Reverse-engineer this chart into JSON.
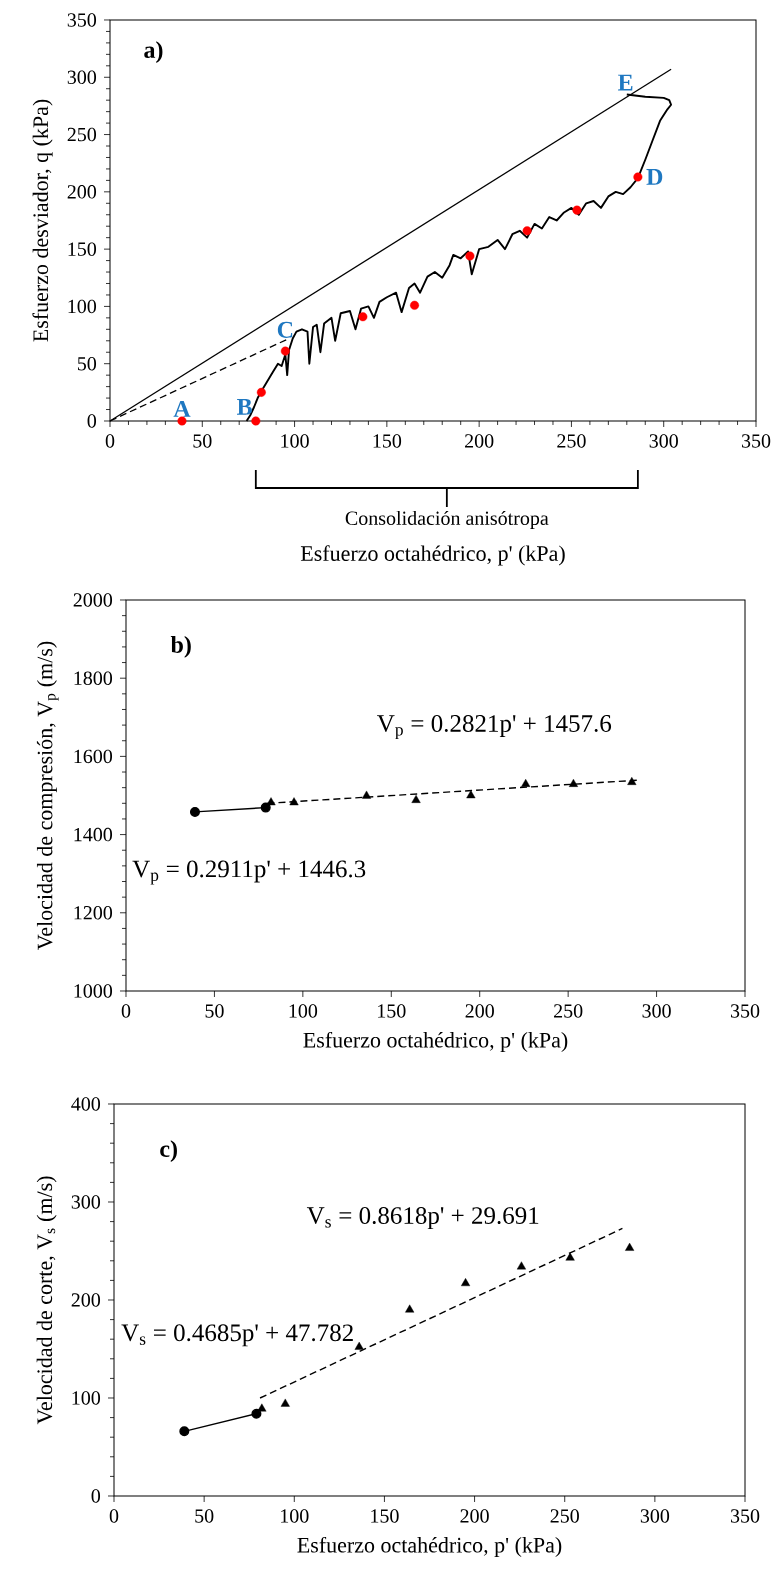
{
  "chart_data": [
    {
      "type": "line",
      "xlabel": "Esfuerzo octahédrico, p' (kPa)",
      "ylabel": "Esfuerzo desviador, q (kPa)",
      "xlim": [
        0,
        350
      ],
      "ylim": [
        0,
        350
      ],
      "xticks": [
        0,
        50,
        100,
        150,
        200,
        250,
        300,
        350
      ],
      "yticks": [
        0,
        50,
        100,
        150,
        200,
        250,
        300,
        350
      ],
      "series": [
        {
          "color": "#000000",
          "line_style": "solid",
          "x": [
            74,
            76,
            78,
            80,
            82,
            85,
            88,
            91,
            93,
            95,
            96,
            97,
            99,
            101,
            104,
            107,
            108,
            110,
            112,
            114,
            116,
            120,
            122,
            125,
            130,
            133,
            136,
            140,
            143,
            146,
            150,
            155,
            158,
            162,
            165,
            168,
            172,
            176,
            180,
            184,
            186,
            190,
            194,
            196,
            200,
            205,
            210,
            214,
            218,
            222,
            226,
            230,
            234,
            238,
            242,
            246,
            250,
            254,
            258,
            262,
            266,
            270,
            274,
            278,
            282,
            286,
            290,
            294,
            298,
            302,
            304,
            303,
            300,
            290,
            280
          ],
          "values": [
            0,
            5,
            12,
            20,
            26,
            34,
            42,
            50,
            48,
            58,
            40,
            62,
            72,
            78,
            80,
            78,
            50,
            82,
            84,
            60,
            85,
            90,
            70,
            94,
            96,
            80,
            98,
            100,
            90,
            104,
            108,
            112,
            95,
            116,
            120,
            112,
            126,
            130,
            125,
            136,
            145,
            142,
            148,
            128,
            150,
            152,
            158,
            150,
            163,
            166,
            160,
            172,
            168,
            178,
            175,
            182,
            186,
            180,
            190,
            192,
            186,
            196,
            200,
            198,
            204,
            212,
            228,
            245,
            262,
            272,
            276,
            280,
            282,
            283,
            285
          ]
        },
        {
          "color": "#000000",
          "line_style": "solid",
          "x": [
            0,
            304
          ],
          "values": [
            0,
            307
          ]
        },
        {
          "color": "#000000",
          "line_style": "dashed",
          "x": [
            0,
            97
          ],
          "values": [
            0,
            72
          ]
        },
        {
          "type": "scatter",
          "color": "#ff0000",
          "marker": "circle",
          "x": [
            39,
            79,
            82,
            95,
            137,
            165,
            195,
            226,
            253,
            286
          ],
          "values": [
            0,
            0,
            25,
            61,
            91,
            101,
            144,
            166,
            184,
            213
          ]
        }
      ],
      "annotations": [
        "a)",
        {
          "text": "A",
          "x": 39,
          "y": 0
        },
        {
          "text": "B",
          "x": 79,
          "y": 0
        },
        {
          "text": "C",
          "x": 95,
          "y": 61
        },
        {
          "text": "D",
          "x": 286,
          "y": 213
        },
        {
          "text": "E",
          "x": 281,
          "y": 284
        },
        "Consolidación anisótropa"
      ]
    },
    {
      "type": "scatter",
      "xlabel": "Esfuerzo octahédrico, p' (kPa)",
      "ylabel": "Velocidad de compresión, V$_{p}$  (m/s)",
      "xlim": [
        0,
        350
      ],
      "ylim": [
        1000,
        2000
      ],
      "xticks": [
        0,
        50,
        100,
        150,
        200,
        250,
        300,
        350
      ],
      "yticks": [
        1000,
        1200,
        1400,
        1600,
        1800,
        2000
      ],
      "series": [
        {
          "type": "line",
          "color": "#000000",
          "marker": "circle",
          "line_style": "solid",
          "x": [
            39,
            79
          ],
          "values": [
            1458,
            1469
          ]
        },
        {
          "color": "#000000",
          "marker": "triangle",
          "x": [
            82,
            95,
            136,
            164,
            195,
            226,
            253,
            286
          ],
          "values": [
            1482,
            1482,
            1499,
            1488,
            1500,
            1529,
            1529,
            1534
          ]
        },
        {
          "type": "line",
          "color": "#000000",
          "line_style": "dashed",
          "x": [
            80,
            289
          ],
          "values": [
            1480,
            1539
          ]
        }
      ],
      "annotations": [
        "b)",
        "V$_{p}$ = 0.2821p' + 1457.6",
        "V$_{p}$ = 0.2911p' + 1446.3"
      ]
    },
    {
      "type": "scatter",
      "xlabel": "Esfuerzo octahédrico, p' (kPa)",
      "ylabel": "Velocidad de corte, V$_{s}$  (m/s)",
      "xlim": [
        0,
        350
      ],
      "ylim": [
        0,
        400
      ],
      "xticks": [
        0,
        50,
        100,
        150,
        200,
        250,
        300,
        350
      ],
      "yticks": [
        0,
        100,
        200,
        300,
        400
      ],
      "series": [
        {
          "type": "line",
          "color": "#000000",
          "marker": "circle",
          "line_style": "solid",
          "x": [
            39,
            79
          ],
          "values": [
            66,
            84
          ]
        },
        {
          "color": "#000000",
          "marker": "triangle",
          "x": [
            82,
            95,
            136,
            164,
            195,
            226,
            253,
            286
          ],
          "values": [
            89,
            94,
            152,
            190,
            217,
            234,
            243,
            253
          ]
        },
        {
          "type": "line",
          "color": "#000000",
          "line_style": "dashed",
          "x": [
            81,
            282
          ],
          "values": [
            100,
            273
          ]
        }
      ],
      "annotations": [
        "c)",
        "V$_{s}$ = 0.8618p' + 29.691",
        "V$_{s}$ = 0.4685p' + 47.782"
      ]
    }
  ]
}
